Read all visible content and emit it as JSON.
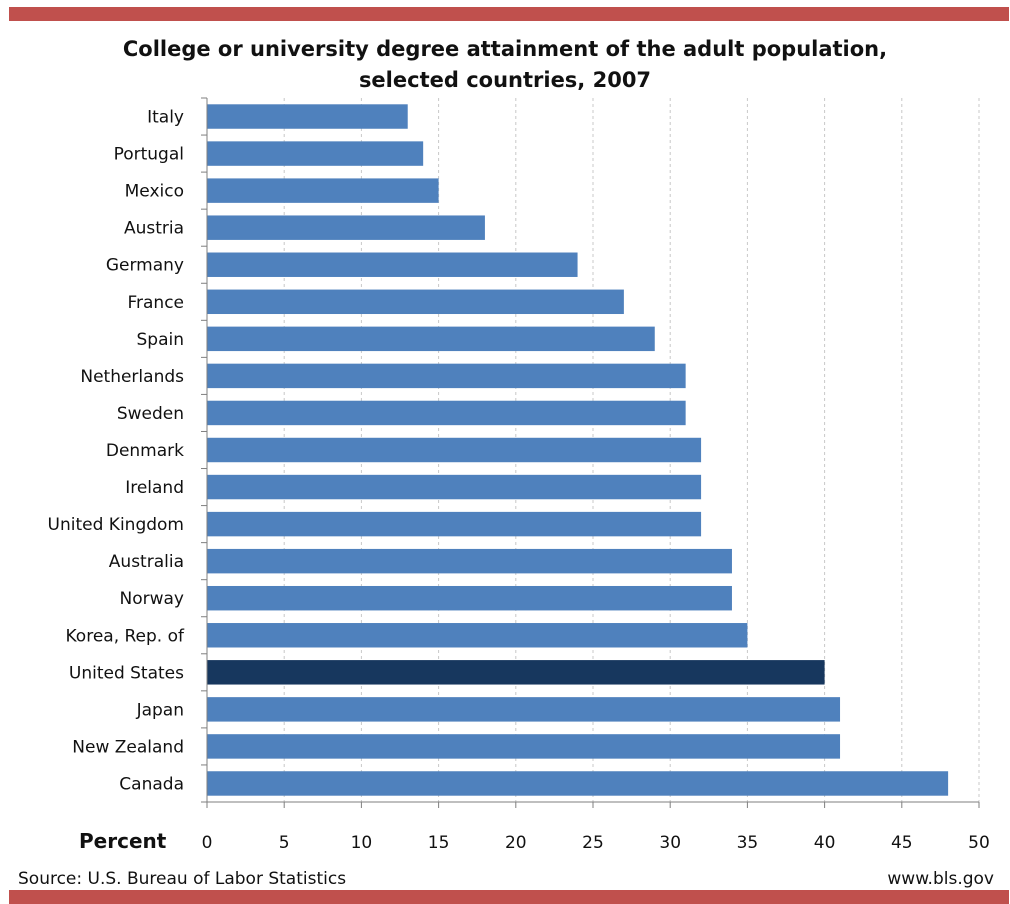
{
  "colors": {
    "band": "#c0504d",
    "bar": "#4f81bd",
    "highlight": "#17375e",
    "grid": "#c8c8c8",
    "axis": "#7f7f7f"
  },
  "chart_data": {
    "type": "bar",
    "orientation": "horizontal",
    "title_line1": "College or university degree attainment of the adult population,",
    "title_line2": "selected countries, 2007",
    "xlabel": "Percent",
    "ylabel": "",
    "xlim": [
      0,
      50
    ],
    "xticks": [
      "0",
      "5",
      "10",
      "15",
      "20",
      "25",
      "30",
      "35",
      "40",
      "45",
      "50"
    ],
    "grid": "vertical dashed",
    "categories": [
      "Italy",
      "Portugal",
      "Mexico",
      "Austria",
      "Germany",
      "France",
      "Spain",
      "Netherlands",
      "Sweden",
      "Denmark",
      "Ireland",
      "United Kingdom",
      "Australia",
      "Norway",
      "Korea, Rep. of",
      "United States",
      "Japan",
      "New Zealand",
      "Canada"
    ],
    "values": [
      13,
      14,
      15,
      18,
      24,
      27,
      29,
      31,
      31,
      32,
      32,
      32,
      34,
      34,
      35,
      40,
      41,
      41,
      48
    ],
    "highlight_category": "United States"
  },
  "footer": {
    "source": "Source: U.S. Bureau of Labor Statistics",
    "site": "www.bls.gov"
  }
}
